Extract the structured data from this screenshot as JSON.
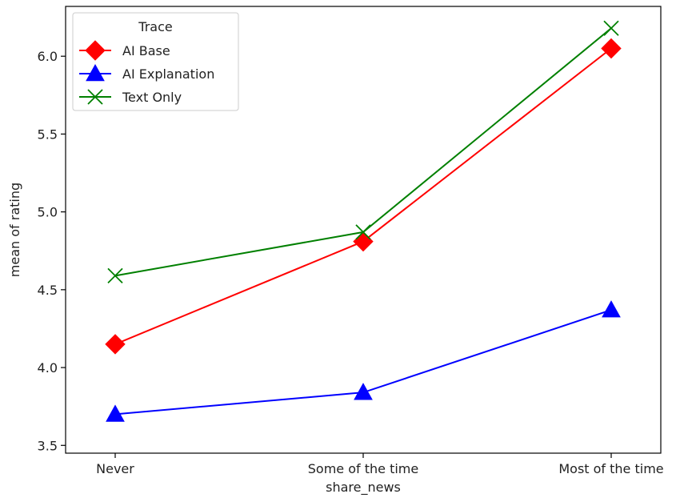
{
  "chart_data": {
    "type": "line",
    "title": "",
    "xlabel": "share_news",
    "ylabel": "mean of rating",
    "categories": [
      "Never",
      "Some of the time",
      "Most of the time"
    ],
    "ylim": [
      3.45,
      6.32
    ],
    "yticks": [
      "3.5",
      "4.0",
      "4.5",
      "5.0",
      "5.5",
      "6.0"
    ],
    "grid": false,
    "legend": {
      "title": "Trace",
      "placement": "top-left"
    },
    "series": [
      {
        "name": "AI Base",
        "values": [
          4.15,
          4.81,
          6.05
        ],
        "color": "#ff0000",
        "marker": "diamond"
      },
      {
        "name": "AI Explanation",
        "values": [
          3.7,
          3.84,
          4.37
        ],
        "color": "#0000ff",
        "marker": "triangle"
      },
      {
        "name": "Text Only",
        "values": [
          4.59,
          4.87,
          6.18
        ],
        "color": "#008000",
        "marker": "x"
      }
    ]
  }
}
